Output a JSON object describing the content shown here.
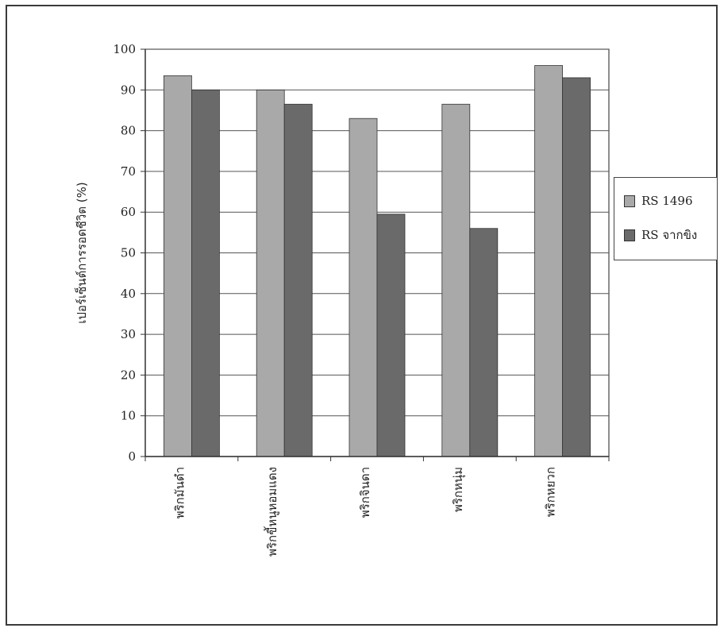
{
  "chart_data": {
    "type": "bar",
    "ylabel": "เปอร์เซ็นต์การรอดชีวิต (%)",
    "xlabel": "",
    "ylim": [
      0,
      100
    ],
    "yticks": [
      "0",
      "10",
      "20",
      "30",
      "40",
      "50",
      "60",
      "70",
      "80",
      "90",
      "100"
    ],
    "grid": true,
    "legend_position": "right",
    "categories": [
      "พริกมันดำ",
      "พริกขี้หนูหอมแดง",
      "พริกจินดา",
      "พริกหนุ่ม",
      "พริกหยวก"
    ],
    "series": [
      {
        "name": "RS 1496",
        "values": [
          93.5,
          90,
          83,
          86.5,
          96
        ],
        "color": "#a9a9a9"
      },
      {
        "name": "RS จากขิง",
        "values": [
          90,
          86.5,
          59.5,
          56,
          93
        ],
        "color": "#6a6a6a"
      }
    ]
  }
}
